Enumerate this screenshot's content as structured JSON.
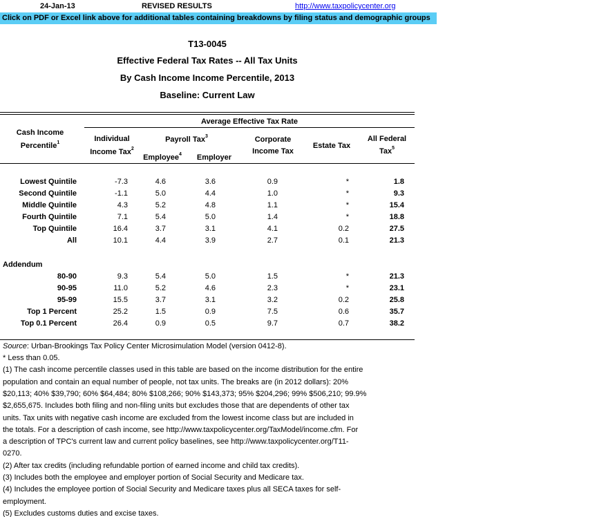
{
  "top_bar": {
    "date": "24-Jan-13",
    "status": "REVISED RESULTS",
    "link": "http://www.taxpolicycenter.org"
  },
  "banner": "Click on PDF or Excel link above for additional tables containing breakdowns by filing status and demographic groups",
  "titles": [
    "T13-0045",
    "Effective Federal Tax Rates -- All Tax Units",
    "By Cash Income Income Percentile, 2013",
    "Baseline: Current Law"
  ],
  "header": {
    "group": "Average Effective Tax Rate",
    "col0": "Cash Income",
    "col0b": "Percentile",
    "col0_sup": "1",
    "ind1": "Individual",
    "ind2": "Income Tax",
    "ind_sup": "2",
    "payroll": "Payroll Tax",
    "payroll_sup": "3",
    "employee": "Employee",
    "employee_sup": "4",
    "employer": "Employer",
    "corp1": "Corporate",
    "corp2": "Income Tax",
    "estate": "Estate Tax",
    "all1": "All Federal",
    "all2": "Tax",
    "all_sup": "5"
  },
  "rows": [
    {
      "label": "Lowest Quintile",
      "v": [
        "-7.3",
        "4.6",
        "3.6",
        "0.9",
        "*",
        "1.8"
      ]
    },
    {
      "label": "Second Quintile",
      "v": [
        "-1.1",
        "5.0",
        "4.4",
        "1.0",
        "*",
        "9.3"
      ]
    },
    {
      "label": "Middle Quintile",
      "v": [
        "4.3",
        "5.2",
        "4.8",
        "1.1",
        "*",
        "15.4"
      ]
    },
    {
      "label": "Fourth Quintile",
      "v": [
        "7.1",
        "5.4",
        "5.0",
        "1.4",
        "*",
        "18.8"
      ]
    },
    {
      "label": "Top Quintile",
      "v": [
        "16.4",
        "3.7",
        "3.1",
        "4.1",
        "0.2",
        "27.5"
      ]
    },
    {
      "label": "All",
      "v": [
        "10.1",
        "4.4",
        "3.9",
        "2.7",
        "0.1",
        "21.3"
      ]
    }
  ],
  "addendum_label": "Addendum",
  "addendum": [
    {
      "label": "80-90",
      "v": [
        "9.3",
        "5.4",
        "5.0",
        "1.5",
        "*",
        "21.3"
      ]
    },
    {
      "label": "90-95",
      "v": [
        "11.0",
        "5.2",
        "4.6",
        "2.3",
        "*",
        "23.1"
      ]
    },
    {
      "label": "95-99",
      "v": [
        "15.5",
        "3.7",
        "3.1",
        "3.2",
        "0.2",
        "25.8"
      ]
    },
    {
      "label": "Top 1 Percent",
      "v": [
        "25.2",
        "1.5",
        "0.9",
        "7.5",
        "0.6",
        "35.7"
      ]
    },
    {
      "label": "Top 0.1 Percent",
      "v": [
        "26.4",
        "0.9",
        "0.5",
        "9.7",
        "0.7",
        "38.2"
      ]
    }
  ],
  "source_label": "Source",
  "source_text": ": Urban-Brookings Tax Policy Center Microsimulation Model (version 0412-8).",
  "notes": [
    "* Less than 0.05.",
    "(1) The cash income percentile classes used in this table are based on the income distribution for the entire",
    "population and contain an equal number of people, not tax units. The breaks are (in 2012 dollars): 20%",
    "$20,113; 40% $39,790; 60% $64,484; 80% $108,266; 90% $143,373; 95% $204,296; 99% $506,210; 99.9%",
    "$2,655,675. Includes both filing and non-filing units but excludes those that are dependents of other tax",
    "units. Tax units with negative cash income are excluded from the lowest income class but are included in",
    "the totals. For a description of cash income, see http://www.taxpolicycenter.org/TaxModel/income.cfm. For",
    "a description of TPC's current law and current policy baselines, see http://www.taxpolicycenter.org/T11-",
    "0270.",
    "(2) After tax credits (including refundable portion of earned income and child tax credits).",
    "(3) Includes both the employee and employer portion of Social Security and Medicare tax.",
    "(4) Includes the employee portion of Social Security and Medicare taxes plus all SECA taxes for self-",
    "employment.",
    "(5) Excludes customs duties and excise taxes."
  ],
  "colors": {
    "banner": "#5bcdf5",
    "link": "#0000ee"
  }
}
